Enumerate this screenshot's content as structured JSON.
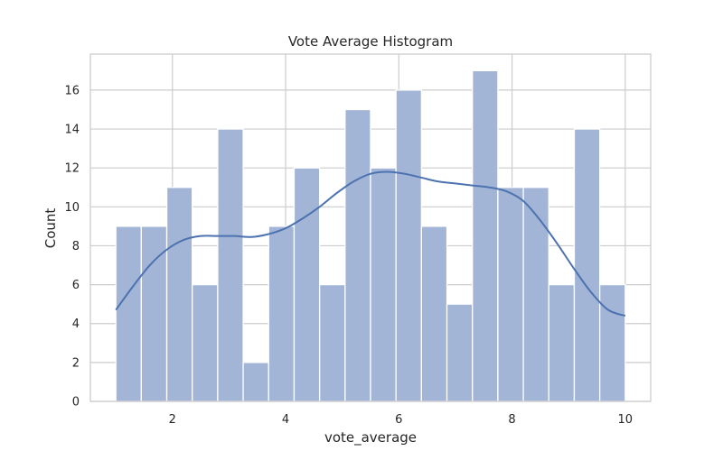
{
  "chart_data": {
    "type": "bar",
    "title": "Vote Average Histogram",
    "xlabel": "vote_average",
    "ylabel": "Count",
    "xlim": [
      0.55,
      10.45
    ],
    "ylim": [
      0,
      17.85
    ],
    "xticks": [
      2,
      4,
      6,
      8,
      10
    ],
    "yticks": [
      0,
      2,
      4,
      6,
      8,
      10,
      12,
      14,
      16
    ],
    "grid": true,
    "bin_edges": [
      1.0,
      1.45,
      1.9,
      2.35,
      2.8,
      3.25,
      3.7,
      4.15,
      4.6,
      5.05,
      5.5,
      5.95,
      6.4,
      6.85,
      7.3,
      7.75,
      8.2,
      8.65,
      9.1,
      9.55,
      10.0
    ],
    "counts": [
      9,
      9,
      11,
      6,
      14,
      2,
      9,
      12,
      6,
      15,
      12,
      16,
      9,
      5,
      17,
      11,
      11,
      6,
      14,
      6
    ],
    "kde": {
      "x": [
        1.0,
        1.3,
        1.6,
        1.9,
        2.2,
        2.5,
        2.8,
        3.1,
        3.4,
        3.7,
        4.0,
        4.3,
        4.6,
        4.9,
        5.2,
        5.5,
        5.8,
        6.1,
        6.4,
        6.7,
        7.0,
        7.3,
        7.6,
        7.9,
        8.2,
        8.5,
        8.8,
        9.1,
        9.4,
        9.7,
        10.0
      ],
      "y": [
        4.7,
        5.9,
        7.0,
        7.8,
        8.3,
        8.5,
        8.5,
        8.5,
        8.45,
        8.6,
        8.9,
        9.4,
        10.0,
        10.7,
        11.3,
        11.7,
        11.8,
        11.7,
        11.5,
        11.3,
        11.2,
        11.1,
        11.0,
        10.8,
        10.3,
        9.3,
        8.1,
        6.8,
        5.6,
        4.7,
        4.4
      ]
    },
    "colors": {
      "bar_fill": "#a3b5d6",
      "bar_edge": "#ffffff",
      "kde_line": "#4c72b0",
      "grid": "#cccccc",
      "frame": "#cccccc"
    }
  }
}
